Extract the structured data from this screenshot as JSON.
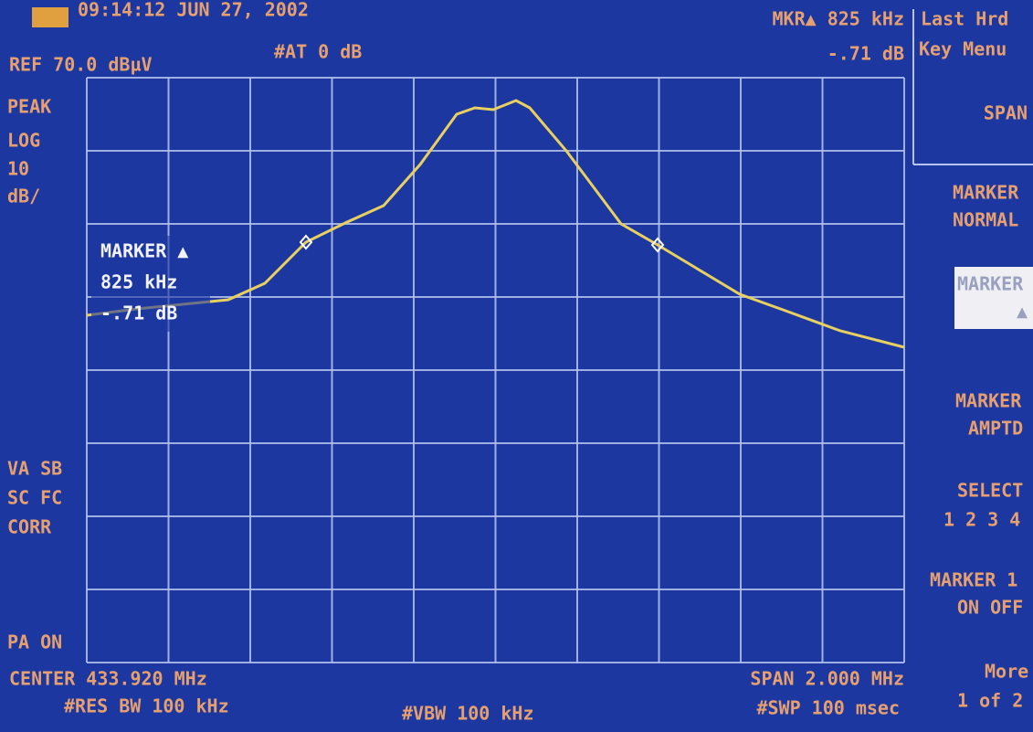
{
  "header": {
    "timestamp": "09:14:12 JUN 27, 2002",
    "ref_level": "REF 70.0 dBµV",
    "attenuation": "#AT 0 dB",
    "marker_label": "MKR▲ 825 kHz",
    "marker_value": "-.71 dB"
  },
  "left_annotations": [
    "PEAK",
    "LOG",
    "10",
    "dB/",
    "VA SB",
    "SC FC",
    "CORR",
    "PA ON"
  ],
  "marker_box": [
    "MARKER ▲",
    "825 kHz",
    "-.71 dB"
  ],
  "footer": {
    "center": "CENTER 433.920 MHz",
    "rbw": "#RES BW 100 kHz",
    "vbw": "#VBW 100 kHz",
    "span": "SPAN 2.000 MHz",
    "sweep": "#SWP 100 msec"
  },
  "softkeys": {
    "menu_title": [
      "Last Hrd",
      "Key Menu"
    ],
    "span": "SPAN",
    "marker_normal": [
      "MARKER",
      "NORMAL"
    ],
    "marker_delta": [
      "MARKER",
      "▲"
    ],
    "marker_amptd": [
      "MARKER",
      "AMPTD"
    ],
    "select": [
      "SELECT",
      "1 2 3 4"
    ],
    "marker_on_off": [
      "MARKER 1",
      "ON OFF"
    ],
    "more": [
      "More",
      "1 of 2"
    ]
  }
}
